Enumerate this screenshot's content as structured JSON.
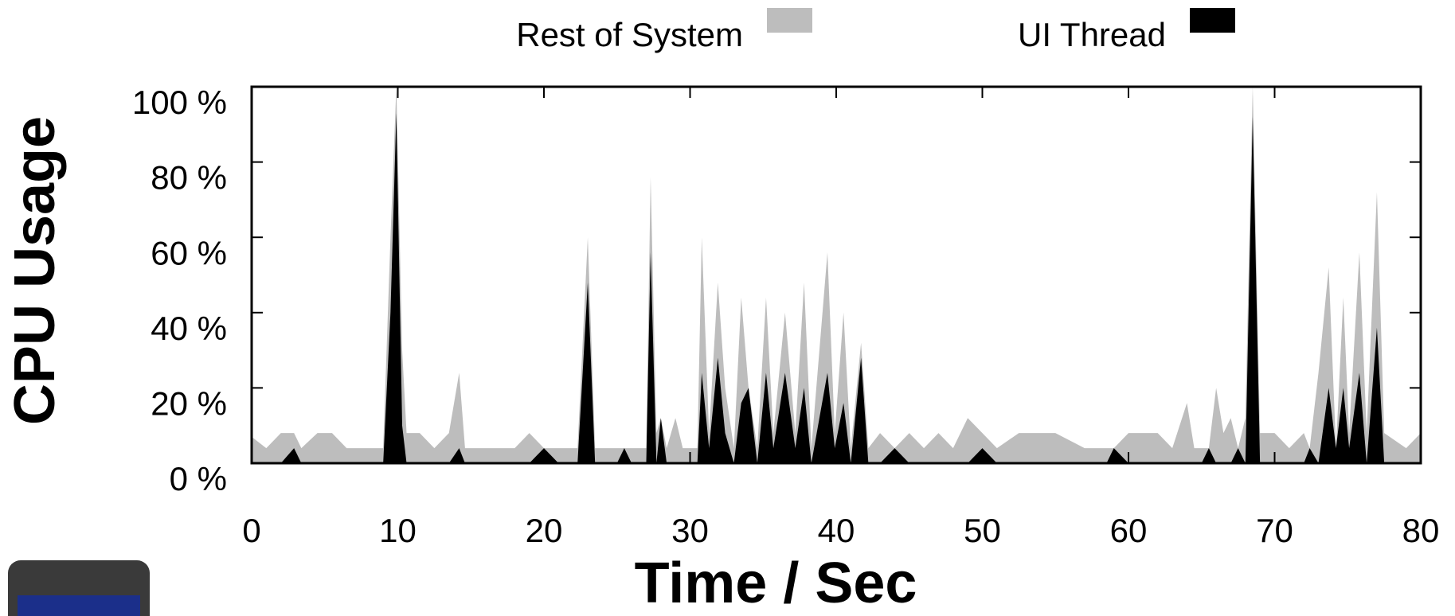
{
  "chart_data": {
    "type": "area",
    "xlabel": "Time / Sec",
    "ylabel": "CPU Usage",
    "x": [
      0,
      1,
      2,
      2.9,
      3.4,
      4.5,
      5.5,
      6.5,
      8,
      9,
      9.5,
      9.9,
      10.3,
      10.6,
      11.5,
      12.5,
      13.5,
      14.2,
      14.6,
      16,
      18,
      19,
      20,
      21,
      22.3,
      23,
      23.5,
      25,
      25.5,
      26,
      27,
      27.3,
      27.7,
      28,
      28.4,
      29,
      29.5,
      30.5,
      30.8,
      31.3,
      31.9,
      32.4,
      33,
      33.5,
      34,
      34.6,
      35.2,
      35.7,
      36.5,
      37.2,
      37.8,
      38.3,
      39.4,
      39.9,
      40.5,
      41,
      41.7,
      42.2,
      43,
      44,
      45,
      46,
      47,
      48,
      49,
      50,
      51,
      52.5,
      54,
      55,
      57,
      58.5,
      59,
      60,
      61,
      62,
      63,
      64,
      64.5,
      65,
      65.5,
      66,
      66.5,
      67,
      67.5,
      68,
      68.5,
      69,
      70,
      71,
      72,
      72.4,
      73,
      73.7,
      74.2,
      74.7,
      75.1,
      75.8,
      76.3,
      77,
      77.5,
      79,
      80
    ],
    "series": [
      {
        "name": "Rest of System",
        "color": "#bdbdbd",
        "values": [
          7,
          4,
          8,
          8,
          4,
          8,
          8,
          4,
          4,
          4,
          60,
          100,
          30,
          8,
          8,
          4,
          8,
          24,
          4,
          4,
          4,
          8,
          4,
          4,
          4,
          60,
          4,
          4,
          4,
          4,
          4,
          76,
          8,
          12,
          4,
          12,
          4,
          4,
          60,
          8,
          48,
          20,
          4,
          44,
          20,
          4,
          44,
          8,
          40,
          8,
          48,
          4,
          56,
          8,
          40,
          4,
          32,
          4,
          8,
          4,
          8,
          4,
          8,
          4,
          12,
          8,
          4,
          8,
          8,
          8,
          4,
          4,
          4,
          8,
          8,
          8,
          4,
          16,
          4,
          4,
          4,
          20,
          8,
          12,
          4,
          12,
          100,
          8,
          8,
          4,
          8,
          4,
          24,
          52,
          4,
          44,
          8,
          56,
          8,
          72,
          8,
          4,
          8
        ]
      },
      {
        "name": "UI Thread",
        "color": "#000000",
        "values": [
          0,
          0,
          0,
          4,
          0,
          0,
          0,
          0,
          0,
          0,
          40,
          93,
          10,
          0,
          0,
          0,
          0,
          4,
          0,
          0,
          0,
          0,
          4,
          0,
          0,
          48,
          0,
          0,
          4,
          0,
          0,
          56,
          0,
          12,
          0,
          0,
          0,
          0,
          24,
          4,
          28,
          8,
          0,
          16,
          20,
          0,
          24,
          4,
          24,
          4,
          20,
          0,
          24,
          4,
          16,
          0,
          28,
          0,
          0,
          4,
          0,
          0,
          0,
          0,
          0,
          4,
          0,
          0,
          0,
          0,
          0,
          0,
          4,
          0,
          0,
          0,
          0,
          0,
          0,
          0,
          4,
          0,
          0,
          0,
          4,
          0,
          92,
          0,
          0,
          0,
          0,
          4,
          0,
          20,
          4,
          20,
          4,
          24,
          0,
          36,
          0,
          0,
          0
        ]
      }
    ],
    "xlim": [
      0,
      80
    ],
    "xticks": [
      0,
      10,
      20,
      30,
      40,
      50,
      60,
      70,
      80
    ],
    "ylim": [
      0,
      100
    ],
    "yticks": [
      {
        "value": 0,
        "label": "0 %"
      },
      {
        "value": 20,
        "label": "20 %"
      },
      {
        "value": 40,
        "label": "40 %"
      },
      {
        "value": 60,
        "label": "60 %"
      },
      {
        "value": 80,
        "label": "80 %"
      },
      {
        "value": 100,
        "label": "100 %"
      }
    ],
    "legend": "top"
  }
}
